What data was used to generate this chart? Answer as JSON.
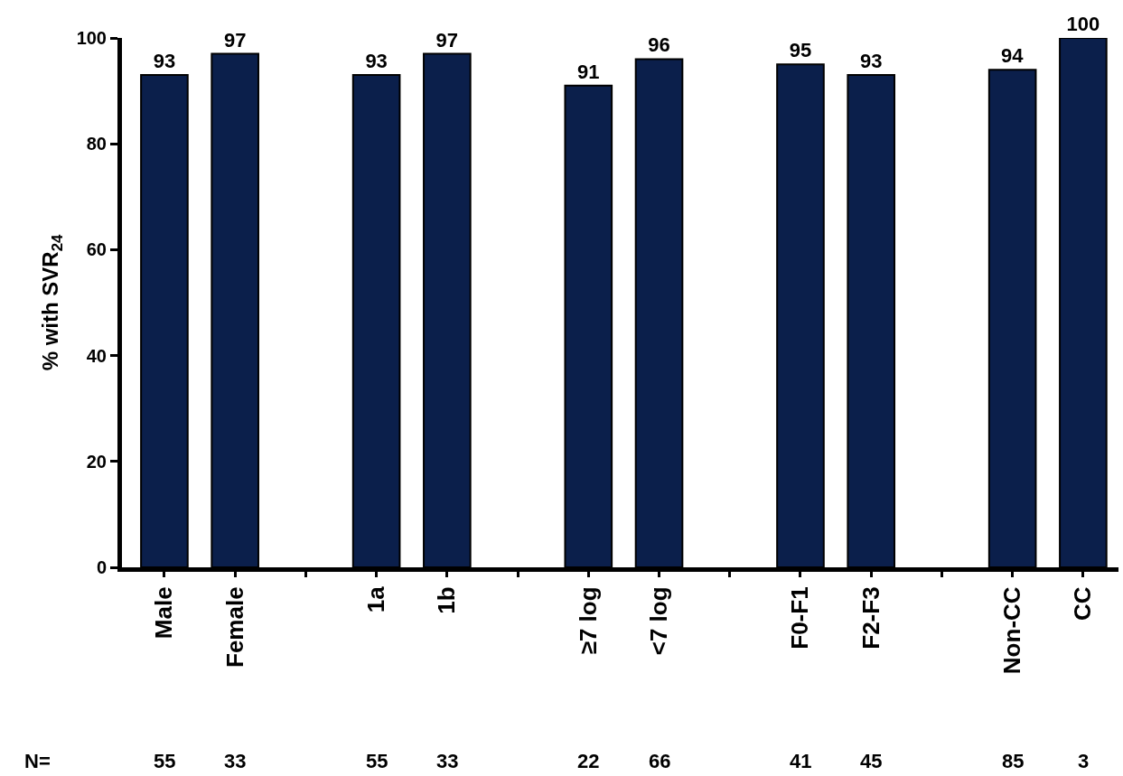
{
  "chart_data": {
    "type": "bar",
    "categories": [
      "Male",
      "Female",
      null,
      "1a",
      "1b",
      null,
      "≥7 log",
      "<7 log",
      null,
      "F0-F1",
      "F2-F3",
      null,
      "Non-CC",
      "CC"
    ],
    "values": [
      93,
      97,
      null,
      93,
      97,
      null,
      91,
      96,
      null,
      95,
      93,
      null,
      94,
      100
    ],
    "color": "#0b1f4b",
    "ylabel": "% with SVR$_{24}$",
    "ylim": [
      0,
      100
    ],
    "yticks": [
      0,
      20,
      40,
      60,
      80,
      100
    ],
    "data_labels": true,
    "legend": false,
    "annotations": [
      "N=",
      "55",
      "33",
      "55",
      "33",
      "22",
      "66",
      "41",
      "45",
      "85",
      "3"
    ]
  }
}
